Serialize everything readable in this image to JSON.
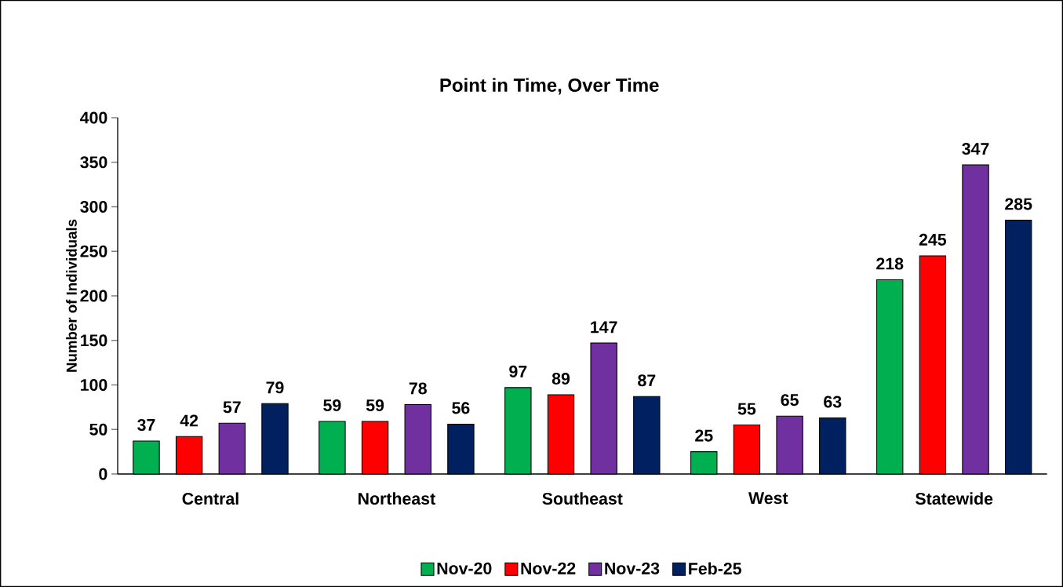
{
  "chart_data": {
    "type": "bar",
    "title": "Point in Time, Over Time",
    "ylabel": "Number of Individuals",
    "categories": [
      "Central",
      "Northeast",
      "Southeast",
      "West",
      "Statewide"
    ],
    "series": [
      {
        "name": "Nov-20",
        "color": "#00b050",
        "values": [
          37,
          59,
          97,
          25,
          218
        ]
      },
      {
        "name": "Nov-22",
        "color": "#ff0000",
        "values": [
          42,
          59,
          89,
          55,
          245
        ]
      },
      {
        "name": "Nov-23",
        "color": "#7030a0",
        "values": [
          57,
          78,
          147,
          65,
          347
        ]
      },
      {
        "name": "Feb-25",
        "color": "#002060",
        "values": [
          79,
          56,
          87,
          63,
          285
        ]
      }
    ],
    "ylim": [
      0,
      400
    ],
    "yticks": [
      0,
      50,
      100,
      150,
      200,
      250,
      300,
      350,
      400
    ],
    "data_labels": true,
    "legend": "bottom",
    "grid": false
  }
}
